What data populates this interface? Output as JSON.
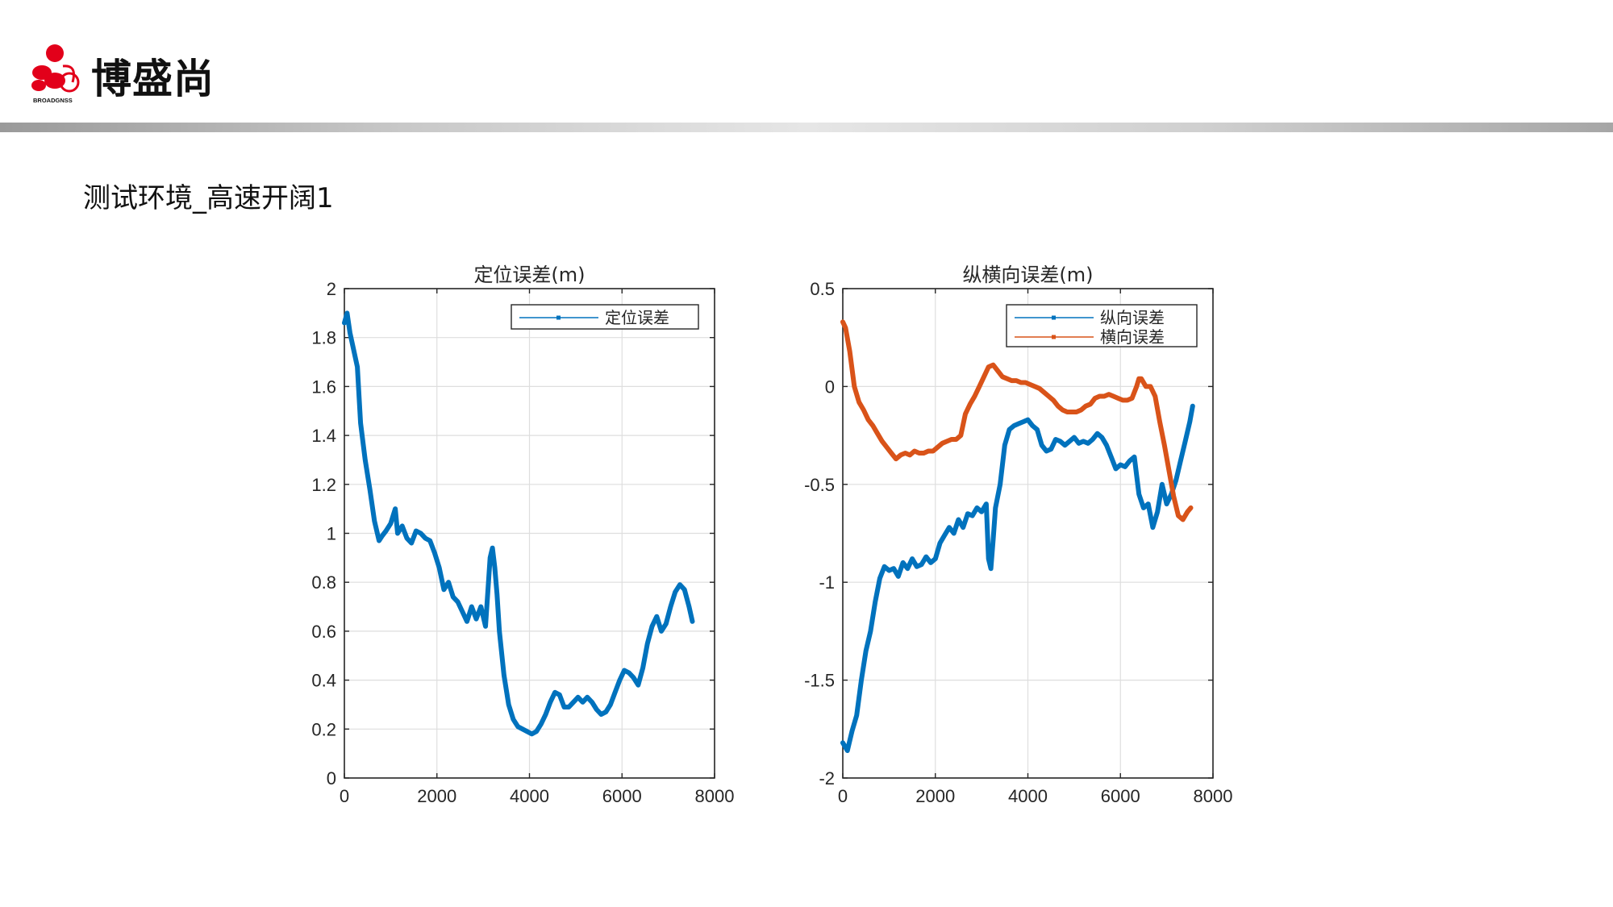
{
  "header": {
    "brand_name": "博盛尚",
    "logo_text": "BROADGNSS"
  },
  "slide": {
    "title": "测试环境_高速开阔1"
  },
  "chart_data": [
    {
      "type": "line",
      "title": "定位误差(m)",
      "xlabel": "",
      "ylabel": "",
      "xlim": [
        0,
        8000
      ],
      "ylim": [
        0,
        2
      ],
      "xticks": [
        "0",
        "2000",
        "4000",
        "6000",
        "8000"
      ],
      "yticks": [
        "0",
        "0.2",
        "0.4",
        "0.6",
        "0.8",
        "1",
        "1.2",
        "1.4",
        "1.6",
        "1.8",
        "2"
      ],
      "grid": true,
      "legend": "top-right",
      "series": [
        {
          "name": "定位误差",
          "color": "#0072BD",
          "x": [
            0,
            60,
            120,
            200,
            280,
            350,
            450,
            550,
            650,
            750,
            820,
            900,
            1000,
            1100,
            1150,
            1250,
            1350,
            1450,
            1550,
            1650,
            1750,
            1850,
            1950,
            2050,
            2150,
            2250,
            2350,
            2450,
            2550,
            2650,
            2750,
            2850,
            2950,
            3050,
            3150,
            3200,
            3250,
            3300,
            3350,
            3450,
            3550,
            3650,
            3750,
            3850,
            3950,
            4050,
            4150,
            4250,
            4350,
            4450,
            4550,
            4650,
            4750,
            4850,
            4950,
            5050,
            5150,
            5250,
            5350,
            5450,
            5550,
            5650,
            5750,
            5850,
            5950,
            6050,
            6150,
            6250,
            6350,
            6450,
            6550,
            6650,
            6750,
            6850,
            6950,
            7050,
            7150,
            7250,
            7350,
            7450,
            7520
          ],
          "values": [
            1.86,
            1.9,
            1.82,
            1.75,
            1.68,
            1.45,
            1.3,
            1.18,
            1.05,
            0.97,
            0.99,
            1.01,
            1.04,
            1.1,
            1.0,
            1.03,
            0.98,
            0.96,
            1.01,
            1.0,
            0.98,
            0.97,
            0.92,
            0.86,
            0.77,
            0.8,
            0.74,
            0.72,
            0.68,
            0.64,
            0.7,
            0.65,
            0.7,
            0.62,
            0.9,
            0.94,
            0.86,
            0.75,
            0.6,
            0.42,
            0.3,
            0.24,
            0.21,
            0.2,
            0.19,
            0.18,
            0.19,
            0.22,
            0.26,
            0.31,
            0.35,
            0.34,
            0.29,
            0.29,
            0.31,
            0.33,
            0.31,
            0.33,
            0.31,
            0.28,
            0.26,
            0.27,
            0.3,
            0.35,
            0.4,
            0.44,
            0.43,
            0.41,
            0.38,
            0.45,
            0.55,
            0.62,
            0.66,
            0.6,
            0.63,
            0.7,
            0.76,
            0.79,
            0.77,
            0.7,
            0.64
          ]
        }
      ]
    },
    {
      "type": "line",
      "title": "纵横向误差(m)",
      "xlabel": "",
      "ylabel": "",
      "xlim": [
        0,
        8000
      ],
      "ylim": [
        -2,
        0.5
      ],
      "xticks": [
        "0",
        "2000",
        "4000",
        "6000",
        "8000"
      ],
      "yticks": [
        "-2",
        "-1.5",
        "-1",
        "-0.5",
        "0",
        "0.5"
      ],
      "grid": true,
      "legend": "top-right",
      "series": [
        {
          "name": "纵向误差",
          "color": "#0072BD",
          "x": [
            0,
            100,
            200,
            300,
            400,
            500,
            600,
            700,
            800,
            900,
            1000,
            1100,
            1200,
            1300,
            1400,
            1500,
            1600,
            1700,
            1800,
            1900,
            2000,
            2100,
            2200,
            2300,
            2400,
            2500,
            2600,
            2700,
            2800,
            2900,
            3000,
            3100,
            3150,
            3200,
            3250,
            3300,
            3400,
            3500,
            3600,
            3700,
            3800,
            3900,
            4000,
            4100,
            4200,
            4300,
            4400,
            4500,
            4600,
            4700,
            4800,
            4900,
            5000,
            5100,
            5200,
            5300,
            5400,
            5500,
            5600,
            5700,
            5800,
            5900,
            6000,
            6100,
            6200,
            6300,
            6400,
            6500,
            6600,
            6700,
            6800,
            6900,
            7000,
            7100,
            7200,
            7300,
            7400,
            7500,
            7560
          ],
          "values": [
            -1.82,
            -1.86,
            -1.76,
            -1.68,
            -1.5,
            -1.35,
            -1.25,
            -1.1,
            -0.98,
            -0.92,
            -0.94,
            -0.93,
            -0.97,
            -0.9,
            -0.93,
            -0.88,
            -0.92,
            -0.91,
            -0.87,
            -0.9,
            -0.88,
            -0.8,
            -0.76,
            -0.72,
            -0.75,
            -0.68,
            -0.72,
            -0.65,
            -0.66,
            -0.62,
            -0.64,
            -0.6,
            -0.88,
            -0.93,
            -0.78,
            -0.62,
            -0.5,
            -0.3,
            -0.22,
            -0.2,
            -0.19,
            -0.18,
            -0.17,
            -0.2,
            -0.22,
            -0.3,
            -0.33,
            -0.32,
            -0.27,
            -0.28,
            -0.3,
            -0.28,
            -0.26,
            -0.29,
            -0.28,
            -0.29,
            -0.27,
            -0.24,
            -0.26,
            -0.3,
            -0.36,
            -0.42,
            -0.4,
            -0.41,
            -0.38,
            -0.36,
            -0.55,
            -0.62,
            -0.6,
            -0.72,
            -0.64,
            -0.5,
            -0.6,
            -0.55,
            -0.48,
            -0.38,
            -0.28,
            -0.18,
            -0.1
          ]
        },
        {
          "name": "横向误差",
          "color": "#D95319",
          "x": [
            0,
            60,
            150,
            250,
            350,
            450,
            550,
            650,
            750,
            850,
            950,
            1050,
            1150,
            1250,
            1350,
            1450,
            1550,
            1650,
            1750,
            1850,
            1950,
            2050,
            2150,
            2250,
            2350,
            2450,
            2550,
            2650,
            2750,
            2850,
            2950,
            3050,
            3150,
            3250,
            3350,
            3450,
            3550,
            3650,
            3750,
            3850,
            3950,
            4050,
            4150,
            4250,
            4350,
            4450,
            4550,
            4650,
            4750,
            4850,
            4950,
            5050,
            5150,
            5250,
            5350,
            5450,
            5550,
            5650,
            5750,
            5850,
            5950,
            6050,
            6150,
            6250,
            6350,
            6400,
            6450,
            6550,
            6650,
            6750,
            6850,
            6950,
            7050,
            7150,
            7250,
            7350,
            7450,
            7520
          ],
          "values": [
            0.33,
            0.3,
            0.18,
            0.0,
            -0.08,
            -0.12,
            -0.17,
            -0.2,
            -0.24,
            -0.28,
            -0.31,
            -0.34,
            -0.37,
            -0.35,
            -0.34,
            -0.35,
            -0.33,
            -0.34,
            -0.34,
            -0.33,
            -0.33,
            -0.31,
            -0.29,
            -0.28,
            -0.27,
            -0.27,
            -0.25,
            -0.14,
            -0.09,
            -0.05,
            0.0,
            0.05,
            0.1,
            0.11,
            0.08,
            0.05,
            0.04,
            0.03,
            0.03,
            0.02,
            0.02,
            0.01,
            0.0,
            -0.01,
            -0.03,
            -0.05,
            -0.07,
            -0.1,
            -0.12,
            -0.13,
            -0.13,
            -0.13,
            -0.12,
            -0.1,
            -0.09,
            -0.06,
            -0.05,
            -0.05,
            -0.04,
            -0.05,
            -0.06,
            -0.07,
            -0.07,
            -0.06,
            0.0,
            0.04,
            0.04,
            0.0,
            0.0,
            -0.05,
            -0.18,
            -0.3,
            -0.43,
            -0.56,
            -0.66,
            -0.68,
            -0.64,
            -0.62
          ]
        }
      ]
    }
  ]
}
